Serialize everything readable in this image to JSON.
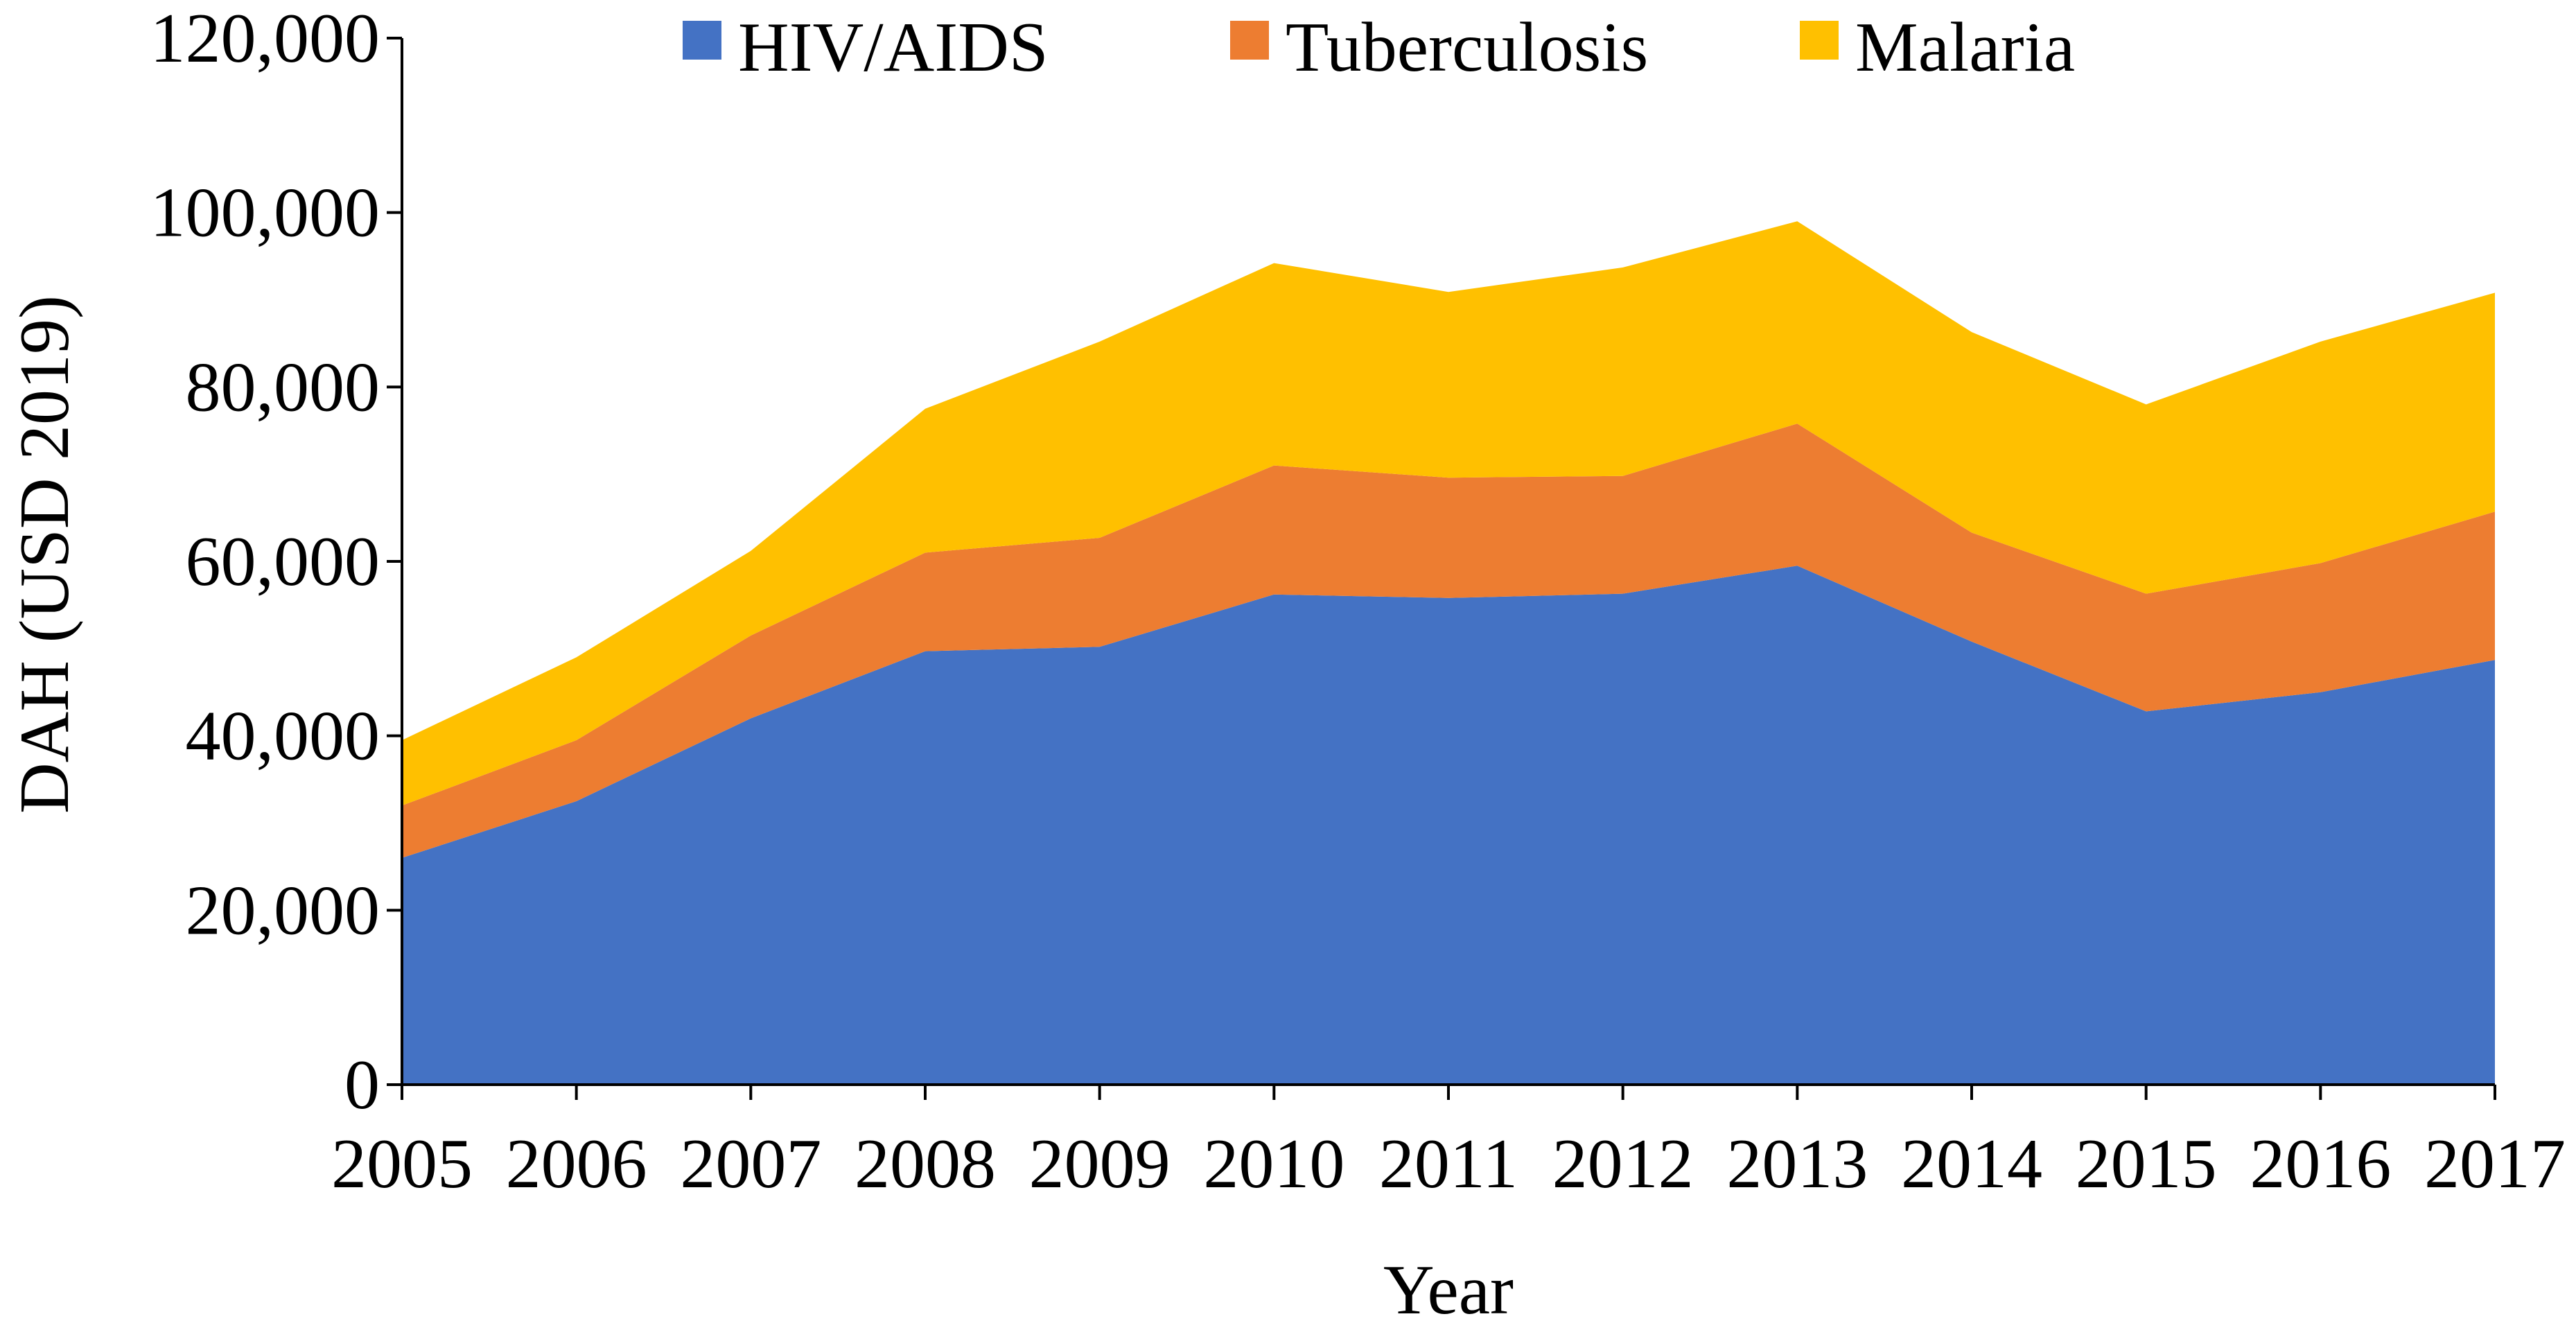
{
  "chart_data": {
    "type": "area",
    "stacked": true,
    "title": "",
    "xlabel": "Year",
    "ylabel": "DAH (USD 2019)",
    "x": [
      2005,
      2006,
      2007,
      2008,
      2009,
      2010,
      2011,
      2012,
      2013,
      2014,
      2015,
      2016,
      2017
    ],
    "x_tick_labels": [
      "2005",
      "2006",
      "2007",
      "2008",
      "2009",
      "2010",
      "2011",
      "2012",
      "2013",
      "2014",
      "2015",
      "2016",
      "2017"
    ],
    "ylim": [
      0,
      120000
    ],
    "y_ticks": [
      0,
      20000,
      40000,
      60000,
      80000,
      100000,
      120000
    ],
    "y_tick_labels": [
      "0",
      "20,000",
      "40,000",
      "60,000",
      "80,000",
      "100,000",
      "120,000"
    ],
    "legend_position": "top",
    "series": [
      {
        "name": "HIV/AIDS",
        "color": "#4472C4",
        "values": [
          26000,
          32500,
          42000,
          49700,
          50200,
          56200,
          55800,
          56300,
          59500,
          50800,
          42800,
          45000,
          48700
        ]
      },
      {
        "name": "Tuberculosis",
        "color": "#ED7D31",
        "values": [
          6000,
          7000,
          9500,
          11300,
          12500,
          14800,
          13800,
          13500,
          16300,
          12500,
          13500,
          14800,
          17000
        ]
      },
      {
        "name": "Malaria",
        "color": "#FFC000",
        "values": [
          7500,
          9500,
          9700,
          16500,
          22500,
          23200,
          21300,
          23900,
          23200,
          23000,
          21700,
          25400,
          25100
        ]
      }
    ]
  }
}
